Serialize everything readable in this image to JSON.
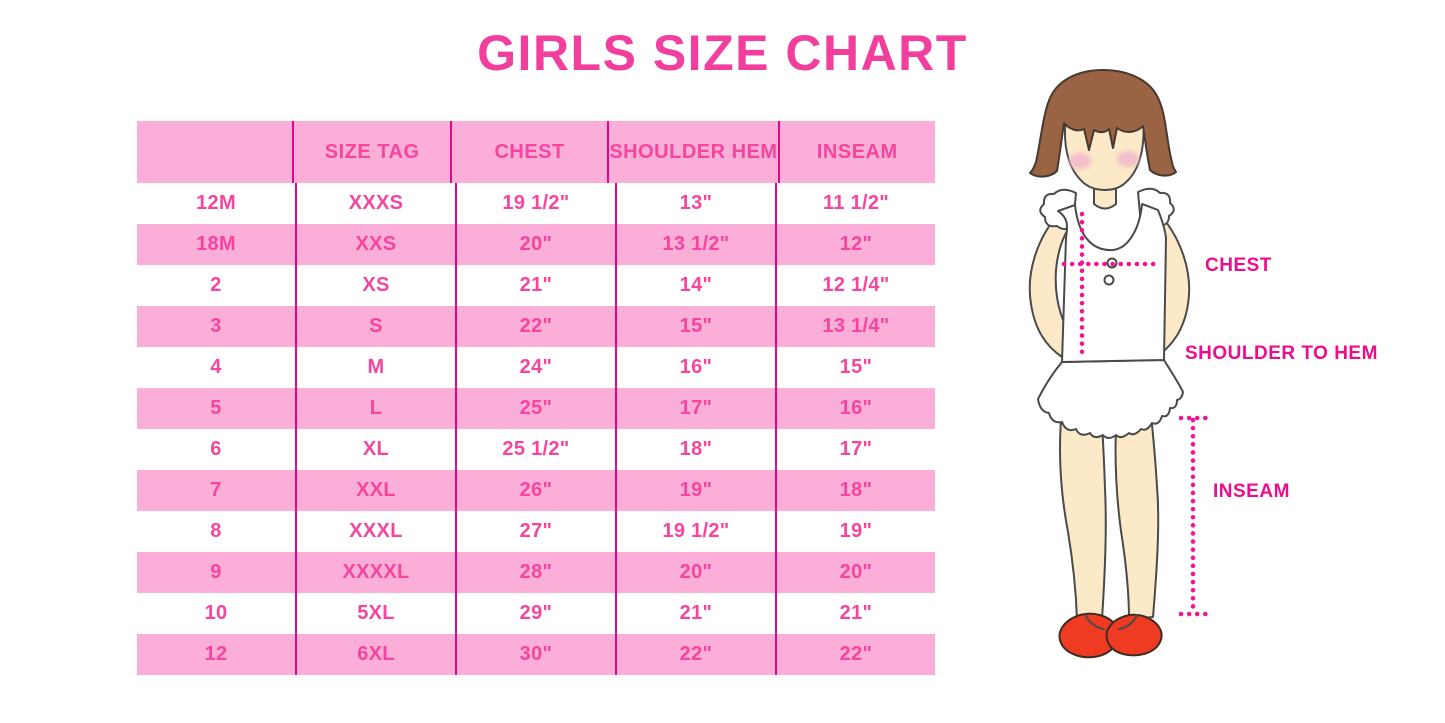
{
  "page": {
    "background": "#FFFFFF",
    "title_color": "#F23F9E"
  },
  "chart_data": {
    "type": "table",
    "title": "GIRLS SIZE CHART",
    "columns": [
      "",
      "SIZE TAG",
      "CHEST",
      "SHOULDER HEM",
      "INSEAM"
    ],
    "rows": [
      [
        "12M",
        "XXXS",
        "19 1/2\"",
        "13\"",
        "11 1/2\""
      ],
      [
        "18M",
        "XXS",
        "20\"",
        "13 1/2\"",
        "12\""
      ],
      [
        "2",
        "XS",
        "21\"",
        "14\"",
        "12 1/4\""
      ],
      [
        "3",
        "S",
        "22\"",
        "15\"",
        "13 1/4\""
      ],
      [
        "4",
        "M",
        "24\"",
        "16\"",
        "15\""
      ],
      [
        "5",
        "L",
        "25\"",
        "17\"",
        "16\""
      ],
      [
        "6",
        "XL",
        "25 1/2\"",
        "18\"",
        "17\""
      ],
      [
        "7",
        "XXL",
        "26\"",
        "19\"",
        "18\""
      ],
      [
        "8",
        "XXXL",
        "27\"",
        "19 1/2\"",
        "19\""
      ],
      [
        "9",
        "XXXXL",
        "28\"",
        "20\"",
        "20\""
      ],
      [
        "10",
        "5XL",
        "29\"",
        "21\"",
        "21\""
      ],
      [
        "12",
        "6XL",
        "30\"",
        "22\"",
        "22\""
      ]
    ],
    "layout": {
      "striping": "header pink, data rows alternate white then pink",
      "grid": "magenta vertical dividers only, no horizontal lines",
      "legend_position": "none"
    },
    "colors": {
      "stripe_pink": "#FBAED8",
      "row_white": "#FFFFFF",
      "divider_magenta": "#E60689",
      "text_pink": "#F5459E"
    }
  },
  "figure": {
    "labels": {
      "chest": "CHEST",
      "shoulder_to_hem": "SHOULDER TO HEM",
      "inseam": "INSEAM"
    },
    "label_color": "#EC0D8F",
    "colors": {
      "hair": "#9A6343",
      "skin": "#FBE9C8",
      "blush": "#F3BFCA",
      "garment": "#FFFFFF",
      "shoes": "#EE3B22",
      "outline": "#4A4A4A",
      "measure_line": "#ED1592"
    }
  }
}
